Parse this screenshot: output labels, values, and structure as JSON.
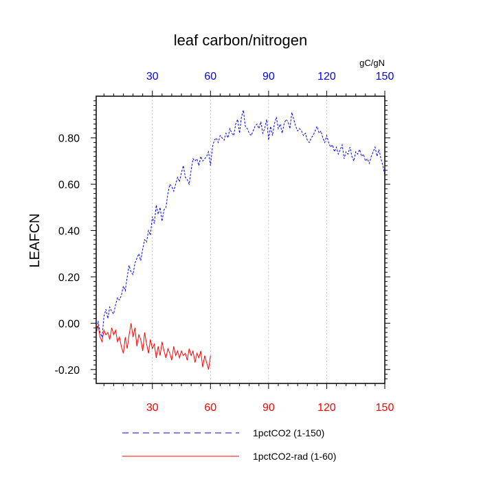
{
  "chart_data": {
    "type": "line",
    "title": "leaf carbon/nitrogen",
    "units": "gC/gN",
    "ylabel": "LEAFCN",
    "xlim": [
      1,
      150
    ],
    "ylim": [
      -0.26,
      0.98
    ],
    "yticks": [
      -0.2,
      0.0,
      0.2,
      0.4,
      0.6,
      0.8
    ],
    "ytick_labels": [
      "-0.20",
      "0.00",
      "0.20",
      "0.40",
      "0.60",
      "0.80"
    ],
    "xticks": [
      30,
      60,
      90,
      120,
      150
    ],
    "xtick_labels_bottom": [
      "30",
      "60",
      "90",
      "120",
      "150"
    ],
    "xtick_labels_top": [
      "30",
      "60",
      "90",
      "120",
      "150"
    ],
    "bottom_axis_color": "#ff0000",
    "top_axis_color": "#0000ff",
    "grid_x": true,
    "grid": false,
    "legend_position": "bottom",
    "series": [
      {
        "name": "1pctCO2 (1-150)",
        "color": "#0000ff",
        "style": "dashed",
        "x": [
          1,
          2,
          3,
          4,
          5,
          6,
          7,
          8,
          9,
          10,
          11,
          12,
          13,
          14,
          15,
          16,
          17,
          18,
          19,
          20,
          21,
          22,
          23,
          24,
          25,
          26,
          27,
          28,
          29,
          30,
          31,
          32,
          33,
          34,
          35,
          36,
          37,
          38,
          39,
          40,
          41,
          42,
          43,
          44,
          45,
          46,
          47,
          48,
          49,
          50,
          51,
          52,
          53,
          54,
          55,
          56,
          57,
          58,
          59,
          60,
          61,
          62,
          63,
          64,
          65,
          66,
          67,
          68,
          69,
          70,
          71,
          72,
          73,
          74,
          75,
          76,
          77,
          78,
          79,
          80,
          81,
          82,
          83,
          84,
          85,
          86,
          87,
          88,
          89,
          90,
          91,
          92,
          93,
          94,
          95,
          96,
          97,
          98,
          99,
          100,
          101,
          102,
          103,
          104,
          105,
          106,
          107,
          108,
          109,
          110,
          111,
          112,
          113,
          114,
          115,
          116,
          117,
          118,
          119,
          120,
          121,
          122,
          123,
          124,
          125,
          126,
          127,
          128,
          129,
          130,
          131,
          132,
          133,
          134,
          135,
          136,
          137,
          138,
          139,
          140,
          141,
          142,
          143,
          144,
          145,
          146,
          147,
          148,
          149,
          150
        ],
        "values": [
          -0.05,
          0.01,
          -0.04,
          -0.06,
          0.03,
          0.06,
          0.02,
          0.07,
          0.05,
          0.04,
          0.08,
          0.11,
          0.1,
          0.12,
          0.16,
          0.14,
          0.2,
          0.25,
          0.22,
          0.21,
          0.26,
          0.28,
          0.3,
          0.27,
          0.32,
          0.36,
          0.35,
          0.4,
          0.38,
          0.46,
          0.43,
          0.51,
          0.47,
          0.5,
          0.44,
          0.49,
          0.5,
          0.56,
          0.6,
          0.59,
          0.57,
          0.6,
          0.63,
          0.61,
          0.65,
          0.68,
          0.63,
          0.62,
          0.6,
          0.66,
          0.71,
          0.7,
          0.71,
          0.68,
          0.72,
          0.7,
          0.71,
          0.72,
          0.74,
          0.68,
          0.76,
          0.79,
          0.8,
          0.78,
          0.81,
          0.8,
          0.79,
          0.82,
          0.8,
          0.84,
          0.82,
          0.81,
          0.86,
          0.88,
          0.82,
          0.89,
          0.92,
          0.85,
          0.84,
          0.82,
          0.81,
          0.83,
          0.85,
          0.86,
          0.84,
          0.87,
          0.82,
          0.84,
          0.88,
          0.79,
          0.85,
          0.81,
          0.86,
          0.89,
          0.84,
          0.86,
          0.82,
          0.86,
          0.88,
          0.87,
          0.84,
          0.91,
          0.88,
          0.85,
          0.83,
          0.84,
          0.83,
          0.81,
          0.82,
          0.79,
          0.78,
          0.8,
          0.81,
          0.83,
          0.85,
          0.82,
          0.83,
          0.8,
          0.78,
          0.81,
          0.78,
          0.76,
          0.77,
          0.74,
          0.76,
          0.73,
          0.75,
          0.77,
          0.71,
          0.74,
          0.73,
          0.76,
          0.72,
          0.7,
          0.74,
          0.73,
          0.75,
          0.72,
          0.73,
          0.7,
          0.71,
          0.69,
          0.72,
          0.74,
          0.76,
          0.72,
          0.75,
          0.71,
          0.68,
          0.64
        ]
      },
      {
        "name": "1pctCO2-rad (1-60)",
        "color": "#ff0000",
        "style": "solid",
        "x": [
          1,
          2,
          3,
          4,
          5,
          6,
          7,
          8,
          9,
          10,
          11,
          12,
          13,
          14,
          15,
          16,
          17,
          18,
          19,
          20,
          21,
          22,
          23,
          24,
          25,
          26,
          27,
          28,
          29,
          30,
          31,
          32,
          33,
          34,
          35,
          36,
          37,
          38,
          39,
          40,
          41,
          42,
          43,
          44,
          45,
          46,
          47,
          48,
          49,
          50,
          51,
          52,
          53,
          54,
          55,
          56,
          57,
          58,
          59,
          60
        ],
        "values": [
          -0.04,
          -0.01,
          -0.06,
          -0.08,
          -0.03,
          -0.05,
          -0.04,
          -0.07,
          -0.02,
          -0.05,
          -0.03,
          -0.08,
          -0.06,
          -0.1,
          -0.13,
          -0.06,
          -0.11,
          -0.05,
          0.0,
          -0.06,
          -0.02,
          -0.1,
          -0.05,
          -0.07,
          -0.12,
          -0.04,
          -0.09,
          -0.13,
          -0.07,
          -0.11,
          -0.09,
          -0.15,
          -0.1,
          -0.14,
          -0.08,
          -0.12,
          -0.15,
          -0.11,
          -0.13,
          -0.16,
          -0.1,
          -0.14,
          -0.12,
          -0.15,
          -0.12,
          -0.14,
          -0.13,
          -0.16,
          -0.11,
          -0.14,
          -0.12,
          -0.17,
          -0.13,
          -0.15,
          -0.12,
          -0.19,
          -0.14,
          -0.17,
          -0.2,
          -0.14
        ]
      }
    ]
  }
}
